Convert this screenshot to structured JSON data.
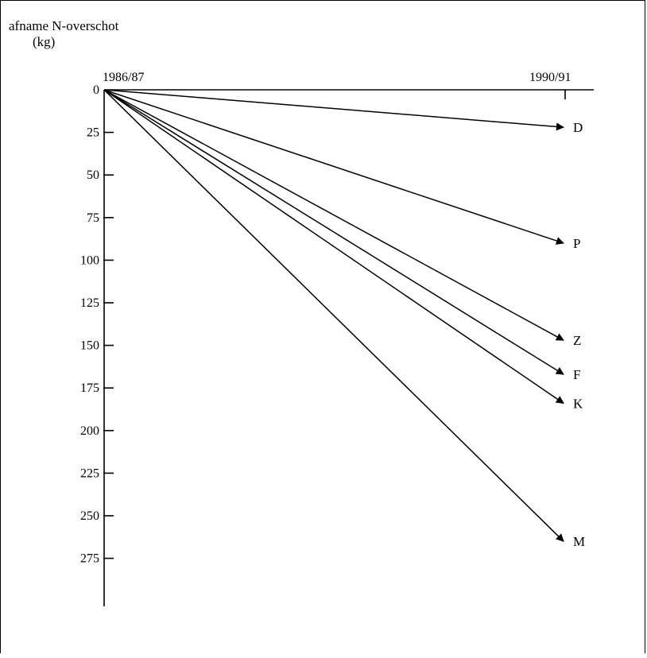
{
  "chart_data": {
    "type": "line",
    "title": "",
    "ylabel_line1": "afname N-overschot",
    "ylabel_line2": "(kg)",
    "x": [
      "1986/87",
      "1990/91"
    ],
    "y_ticks": [
      "0",
      "25",
      "50",
      "75",
      "100",
      "125",
      "150",
      "175",
      "200",
      "225",
      "250",
      "275"
    ],
    "ylim": [
      0,
      300
    ],
    "y_inverted": true,
    "grid": false,
    "legend": "none (series labelled at arrow ends)",
    "series": [
      {
        "name": "D",
        "values": [
          0,
          22
        ]
      },
      {
        "name": "P",
        "values": [
          0,
          90
        ]
      },
      {
        "name": "Z",
        "values": [
          0,
          147
        ]
      },
      {
        "name": "F",
        "values": [
          0,
          167
        ]
      },
      {
        "name": "K",
        "values": [
          0,
          184
        ]
      },
      {
        "name": "M",
        "values": [
          0,
          265
        ]
      }
    ]
  }
}
